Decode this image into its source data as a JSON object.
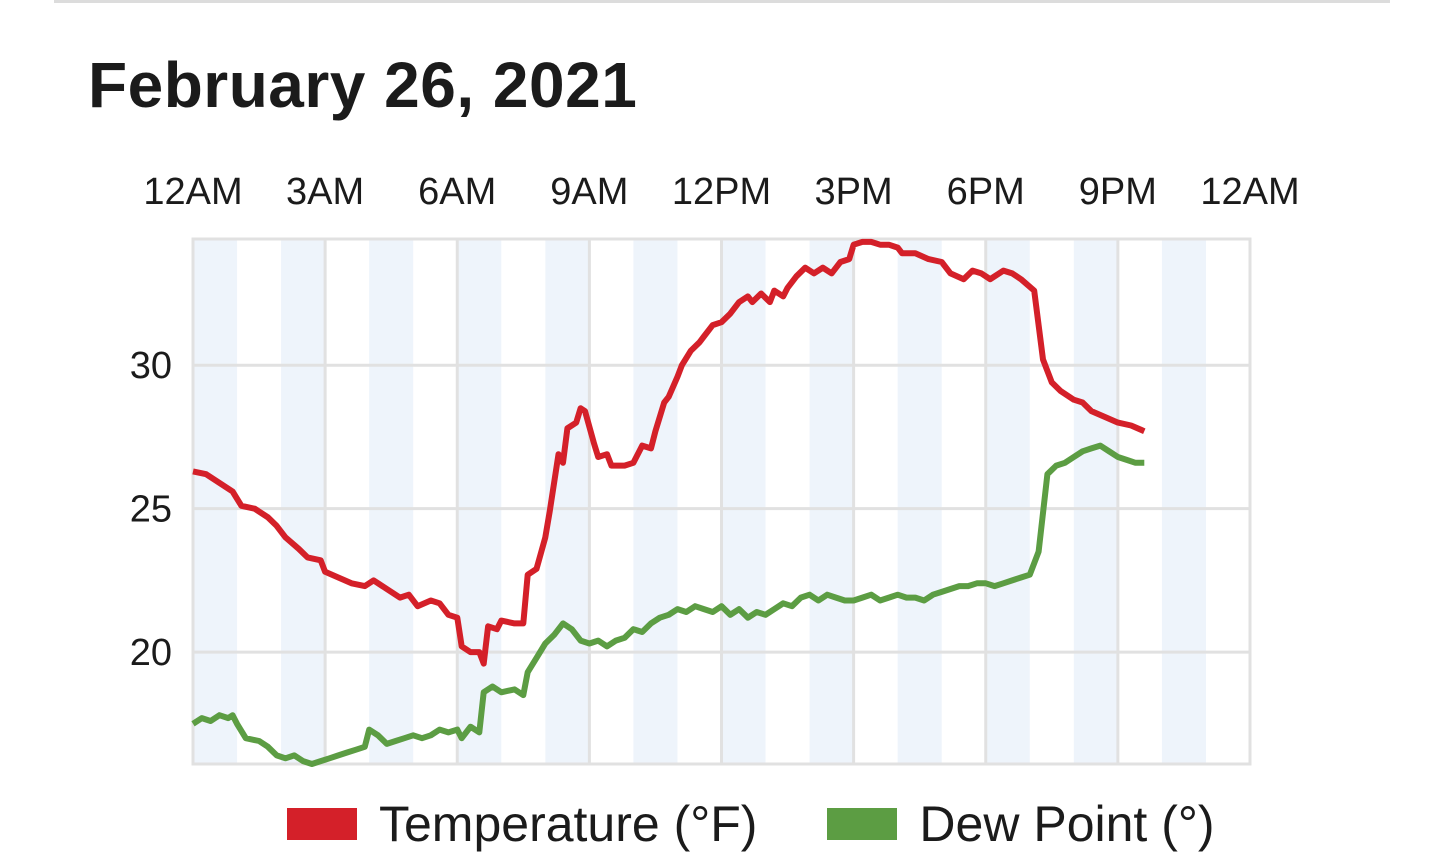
{
  "header": {
    "title": "February 26, 2021"
  },
  "chart_data": {
    "type": "line",
    "title": "February 26, 2021",
    "x_axis": {
      "position": "top",
      "tick_labels": [
        "12AM",
        "3AM",
        "6AM",
        "9AM",
        "12PM",
        "3PM",
        "6PM",
        "9PM",
        "12AM"
      ],
      "range_hours": [
        0,
        24
      ]
    },
    "y_axis": {
      "tick_labels": [
        "20",
        "25",
        "30"
      ],
      "ticks": [
        20,
        25,
        30
      ],
      "range": [
        16.1,
        34.4
      ]
    },
    "grid": true,
    "alternating_hour_bands": true,
    "legend": {
      "placement": "bottom"
    },
    "series": [
      {
        "name": "Temperature (°F)",
        "color": "#d42029",
        "points": [
          [
            0.0,
            26.3
          ],
          [
            0.3,
            26.2
          ],
          [
            0.6,
            25.9
          ],
          [
            0.9,
            25.6
          ],
          [
            1.1,
            25.1
          ],
          [
            1.4,
            25.0
          ],
          [
            1.7,
            24.7
          ],
          [
            1.9,
            24.4
          ],
          [
            2.1,
            24.0
          ],
          [
            2.4,
            23.6
          ],
          [
            2.6,
            23.3
          ],
          [
            2.9,
            23.2
          ],
          [
            3.0,
            22.8
          ],
          [
            3.3,
            22.6
          ],
          [
            3.6,
            22.4
          ],
          [
            3.9,
            22.3
          ],
          [
            4.1,
            22.5
          ],
          [
            4.4,
            22.2
          ],
          [
            4.7,
            21.9
          ],
          [
            4.9,
            22.0
          ],
          [
            5.1,
            21.6
          ],
          [
            5.4,
            21.8
          ],
          [
            5.6,
            21.7
          ],
          [
            5.8,
            21.3
          ],
          [
            6.0,
            21.2
          ],
          [
            6.1,
            20.2
          ],
          [
            6.3,
            20.0
          ],
          [
            6.5,
            20.0
          ],
          [
            6.6,
            19.6
          ],
          [
            6.7,
            20.9
          ],
          [
            6.9,
            20.8
          ],
          [
            7.0,
            21.1
          ],
          [
            7.3,
            21.0
          ],
          [
            7.5,
            21.0
          ],
          [
            7.6,
            22.7
          ],
          [
            7.8,
            22.9
          ],
          [
            8.0,
            24.0
          ],
          [
            8.1,
            24.9
          ],
          [
            8.3,
            26.9
          ],
          [
            8.4,
            26.6
          ],
          [
            8.5,
            27.8
          ],
          [
            8.7,
            28.0
          ],
          [
            8.8,
            28.5
          ],
          [
            8.9,
            28.4
          ],
          [
            9.1,
            27.3
          ],
          [
            9.2,
            26.8
          ],
          [
            9.4,
            26.9
          ],
          [
            9.5,
            26.5
          ],
          [
            9.8,
            26.5
          ],
          [
            10.0,
            26.6
          ],
          [
            10.2,
            27.2
          ],
          [
            10.4,
            27.1
          ],
          [
            10.5,
            27.7
          ],
          [
            10.7,
            28.7
          ],
          [
            10.8,
            28.9
          ],
          [
            11.0,
            29.6
          ],
          [
            11.1,
            30.0
          ],
          [
            11.3,
            30.5
          ],
          [
            11.5,
            30.8
          ],
          [
            11.6,
            31.0
          ],
          [
            11.8,
            31.4
          ],
          [
            12.0,
            31.5
          ],
          [
            12.2,
            31.8
          ],
          [
            12.4,
            32.2
          ],
          [
            12.6,
            32.4
          ],
          [
            12.7,
            32.2
          ],
          [
            12.9,
            32.5
          ],
          [
            13.1,
            32.2
          ],
          [
            13.2,
            32.6
          ],
          [
            13.4,
            32.4
          ],
          [
            13.5,
            32.7
          ],
          [
            13.7,
            33.1
          ],
          [
            13.9,
            33.4
          ],
          [
            14.1,
            33.2
          ],
          [
            14.3,
            33.4
          ],
          [
            14.5,
            33.2
          ],
          [
            14.7,
            33.6
          ],
          [
            14.9,
            33.7
          ],
          [
            15.0,
            34.2
          ],
          [
            15.2,
            34.3
          ],
          [
            15.4,
            34.3
          ],
          [
            15.6,
            34.2
          ],
          [
            15.8,
            34.2
          ],
          [
            16.0,
            34.1
          ],
          [
            16.1,
            33.9
          ],
          [
            16.4,
            33.9
          ],
          [
            16.7,
            33.7
          ],
          [
            17.0,
            33.6
          ],
          [
            17.2,
            33.2
          ],
          [
            17.5,
            33.0
          ],
          [
            17.7,
            33.3
          ],
          [
            17.9,
            33.2
          ],
          [
            18.1,
            33.0
          ],
          [
            18.4,
            33.3
          ],
          [
            18.6,
            33.2
          ],
          [
            18.8,
            33.0
          ],
          [
            19.1,
            32.6
          ],
          [
            19.3,
            30.2
          ],
          [
            19.5,
            29.4
          ],
          [
            19.7,
            29.1
          ],
          [
            20.0,
            28.8
          ],
          [
            20.2,
            28.7
          ],
          [
            20.4,
            28.4
          ],
          [
            20.7,
            28.2
          ],
          [
            21.0,
            28.0
          ],
          [
            21.3,
            27.9
          ],
          [
            21.6,
            27.7
          ]
        ]
      },
      {
        "name": "Dew Point (°)",
        "color": "#5c9d43",
        "points": [
          [
            0.0,
            17.5
          ],
          [
            0.2,
            17.7
          ],
          [
            0.4,
            17.6
          ],
          [
            0.6,
            17.8
          ],
          [
            0.8,
            17.7
          ],
          [
            0.9,
            17.8
          ],
          [
            1.0,
            17.5
          ],
          [
            1.2,
            17.0
          ],
          [
            1.5,
            16.9
          ],
          [
            1.7,
            16.7
          ],
          [
            1.9,
            16.4
          ],
          [
            2.1,
            16.3
          ],
          [
            2.3,
            16.4
          ],
          [
            2.5,
            16.2
          ],
          [
            2.7,
            16.1
          ],
          [
            2.9,
            16.2
          ],
          [
            3.1,
            16.3
          ],
          [
            3.3,
            16.4
          ],
          [
            3.5,
            16.5
          ],
          [
            3.7,
            16.6
          ],
          [
            3.9,
            16.7
          ],
          [
            4.0,
            17.3
          ],
          [
            4.2,
            17.1
          ],
          [
            4.4,
            16.8
          ],
          [
            4.6,
            16.9
          ],
          [
            4.8,
            17.0
          ],
          [
            5.0,
            17.1
          ],
          [
            5.2,
            17.0
          ],
          [
            5.4,
            17.1
          ],
          [
            5.6,
            17.3
          ],
          [
            5.8,
            17.2
          ],
          [
            6.0,
            17.3
          ],
          [
            6.1,
            17.0
          ],
          [
            6.3,
            17.4
          ],
          [
            6.5,
            17.2
          ],
          [
            6.6,
            18.6
          ],
          [
            6.8,
            18.8
          ],
          [
            7.0,
            18.6
          ],
          [
            7.3,
            18.7
          ],
          [
            7.5,
            18.5
          ],
          [
            7.6,
            19.3
          ],
          [
            7.8,
            19.8
          ],
          [
            8.0,
            20.3
          ],
          [
            8.2,
            20.6
          ],
          [
            8.4,
            21.0
          ],
          [
            8.6,
            20.8
          ],
          [
            8.8,
            20.4
          ],
          [
            9.0,
            20.3
          ],
          [
            9.2,
            20.4
          ],
          [
            9.4,
            20.2
          ],
          [
            9.6,
            20.4
          ],
          [
            9.8,
            20.5
          ],
          [
            10.0,
            20.8
          ],
          [
            10.2,
            20.7
          ],
          [
            10.4,
            21.0
          ],
          [
            10.6,
            21.2
          ],
          [
            10.8,
            21.3
          ],
          [
            11.0,
            21.5
          ],
          [
            11.2,
            21.4
          ],
          [
            11.4,
            21.6
          ],
          [
            11.6,
            21.5
          ],
          [
            11.8,
            21.4
          ],
          [
            12.0,
            21.6
          ],
          [
            12.2,
            21.3
          ],
          [
            12.4,
            21.5
          ],
          [
            12.6,
            21.2
          ],
          [
            12.8,
            21.4
          ],
          [
            13.0,
            21.3
          ],
          [
            13.2,
            21.5
          ],
          [
            13.4,
            21.7
          ],
          [
            13.6,
            21.6
          ],
          [
            13.8,
            21.9
          ],
          [
            14.0,
            22.0
          ],
          [
            14.2,
            21.8
          ],
          [
            14.4,
            22.0
          ],
          [
            14.6,
            21.9
          ],
          [
            14.8,
            21.8
          ],
          [
            15.0,
            21.8
          ],
          [
            15.2,
            21.9
          ],
          [
            15.4,
            22.0
          ],
          [
            15.6,
            21.8
          ],
          [
            15.8,
            21.9
          ],
          [
            16.0,
            22.0
          ],
          [
            16.2,
            21.9
          ],
          [
            16.4,
            21.9
          ],
          [
            16.6,
            21.8
          ],
          [
            16.8,
            22.0
          ],
          [
            17.0,
            22.1
          ],
          [
            17.2,
            22.2
          ],
          [
            17.4,
            22.3
          ],
          [
            17.6,
            22.3
          ],
          [
            17.8,
            22.4
          ],
          [
            18.0,
            22.4
          ],
          [
            18.2,
            22.3
          ],
          [
            18.4,
            22.4
          ],
          [
            18.6,
            22.5
          ],
          [
            18.8,
            22.6
          ],
          [
            19.0,
            22.7
          ],
          [
            19.2,
            23.5
          ],
          [
            19.4,
            26.2
          ],
          [
            19.6,
            26.5
          ],
          [
            19.8,
            26.6
          ],
          [
            20.0,
            26.8
          ],
          [
            20.2,
            27.0
          ],
          [
            20.4,
            27.1
          ],
          [
            20.6,
            27.2
          ],
          [
            20.8,
            27.0
          ],
          [
            21.0,
            26.8
          ],
          [
            21.2,
            26.7
          ],
          [
            21.4,
            26.6
          ],
          [
            21.6,
            26.6
          ]
        ]
      }
    ]
  }
}
